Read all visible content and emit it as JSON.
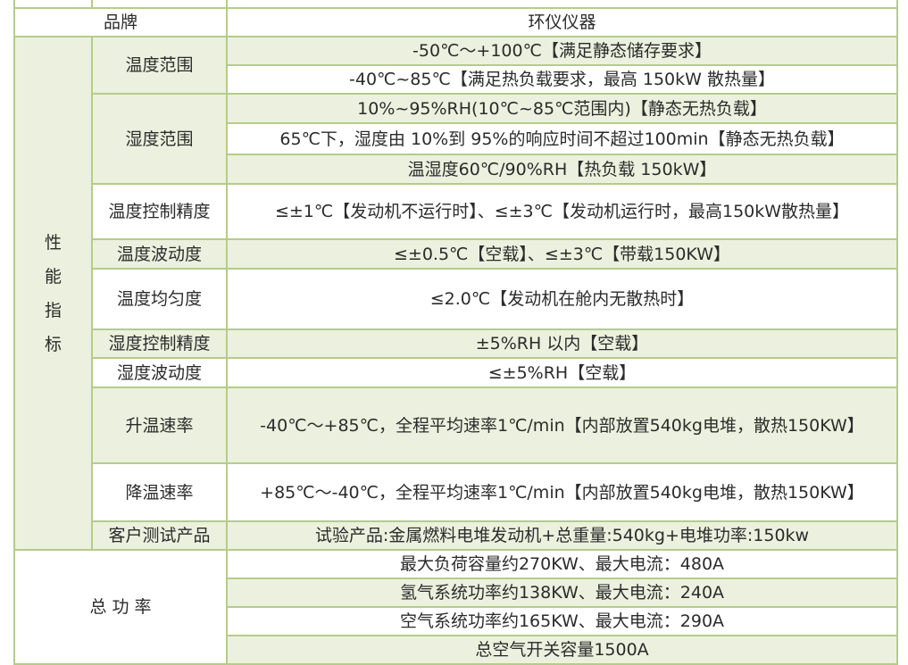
{
  "brand": {
    "label": "品牌",
    "value": "环仪仪器"
  },
  "performance": {
    "group_label": [
      "性",
      "能",
      "指",
      "标"
    ],
    "temperature_range": {
      "label": "温度范围",
      "values": [
        "-50℃～+100℃【满足静态储存要求】",
        "-40℃~85℃【满足热负载要求，最高 150kW 散热量】"
      ]
    },
    "humidity_range": {
      "label": "湿度范围",
      "values": [
        "10%~95%RH(10℃~85℃范围内)【静态无热负载】",
        "65℃下，湿度由 10%到 95%的响应时间不超过100min【静态无热负载】",
        "温湿度60℃/90%RH【热负载 150kW】"
      ]
    },
    "temperature_control_accuracy": {
      "label": "温度控制精度",
      "value": "≤±1℃【发动机不运行时】、≤±3℃【发动机运行时，最高150kW散热量】"
    },
    "temperature_fluctuation": {
      "label": "温度波动度",
      "value": "≤±0.5℃【空载】、≤±3℃【带载150KW】"
    },
    "temperature_uniformity": {
      "label": "温度均匀度",
      "value": "≤2.0℃【发动机在舱内无散热时】"
    },
    "humidity_control_accuracy": {
      "label": "湿度控制精度",
      "value": "±5%RH 以内【空载】"
    },
    "humidity_fluctuation": {
      "label": "湿度波动度",
      "value": "≤±5%RH【空载】"
    },
    "heating_rate": {
      "label": "升温速率",
      "value": "-40℃～+85℃，全程平均速率1℃/min【内部放置540kg电堆，散热150KW】"
    },
    "cooling_rate": {
      "label": "降温速率",
      "value": "+85℃～-40℃，全程平均速率1℃/min【内部放置540kg电堆，散热150KW】"
    },
    "customer_test_product": {
      "label": "客户测试产品",
      "value": "试验产品:金属燃料电堆发动机+总重量:540kg+电堆功率:150kw"
    }
  },
  "total_power": {
    "label": "总 功 率",
    "values": [
      "最大负荷容量约270KW、最大电流：480A",
      "氢气系统功率约138KW、最大电流：240A",
      "空气系统功率约165KW、最大电流：290A",
      "总空气开关容量1500A"
    ]
  },
  "colors": {
    "border": "#b5cc8a",
    "stripe": "#ebf1de"
  }
}
